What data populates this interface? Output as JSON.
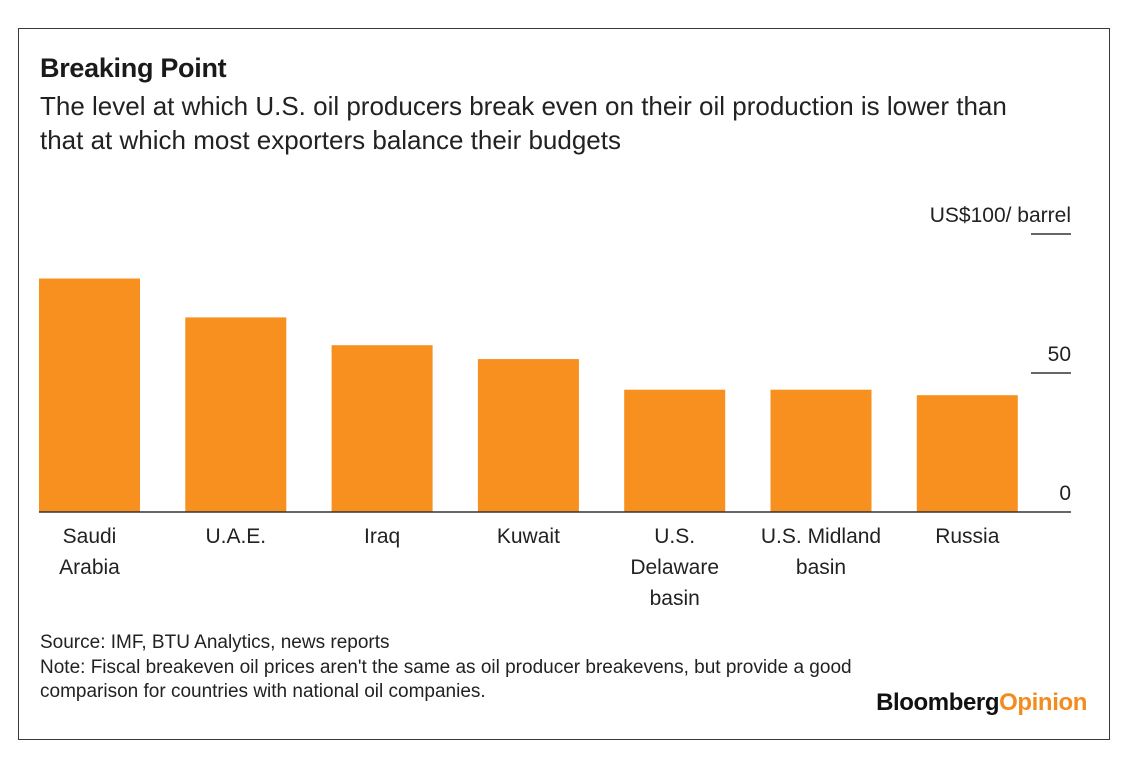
{
  "chart_data": {
    "type": "bar",
    "title": "Breaking Point",
    "subtitle": "The level at which U.S. oil producers break even on their oil production is lower than that at which most exporters balance their budgets",
    "categories": [
      [
        "Saudi",
        "Arabia"
      ],
      [
        "U.A.E."
      ],
      [
        "Iraq"
      ],
      [
        "Kuwait"
      ],
      [
        "U.S.",
        "Delaware",
        "basin"
      ],
      [
        "U.S. Midland",
        "basin"
      ],
      [
        "Russia"
      ]
    ],
    "values": [
      84,
      70,
      60,
      55,
      44,
      44,
      42
    ],
    "ylim": [
      0,
      100
    ],
    "yticks": [
      {
        "value": 100,
        "label": "US$100/ barrel"
      },
      {
        "value": 50,
        "label": "50"
      },
      {
        "value": 0,
        "label": "0"
      }
    ],
    "bar_color": "#f7901e",
    "axis_color": "#333333"
  },
  "footer": {
    "source": "Source: IMF, BTU Analytics, news reports",
    "note": "Note: Fiscal breakeven oil prices aren't the same as oil producer breakevens, but provide a good comparison for countries with national oil companies."
  },
  "brand": {
    "part1": "Bloomberg",
    "part2": "Opinion"
  }
}
